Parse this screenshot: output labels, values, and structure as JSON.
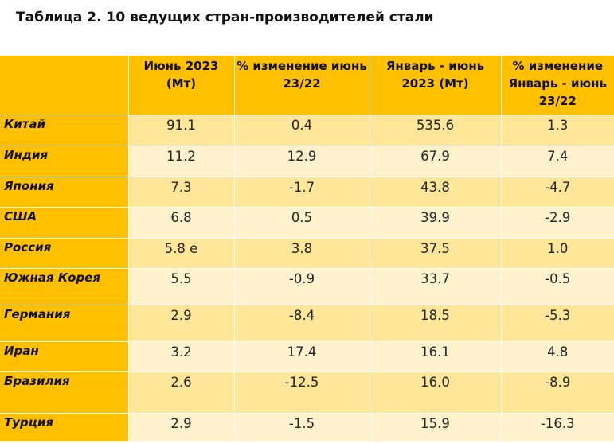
{
  "title": "Таблица 2. 10 ведущих стран-производителей стали",
  "columns": [
    "",
    "Июнь 2023 (Мт)",
    "% изменение июнь 23/22",
    "Январь - июнь 2023 (Мт)",
    "% изменение Январь - июнь 23/22"
  ],
  "rows": [
    {
      "country": "Китай",
      "june": "91.1",
      "june_change": "0.4",
      "jan_jun": "535.6",
      "jan_jun_change": "1.3"
    },
    {
      "country": "Индия",
      "june": "11.2",
      "june_change": "12.9",
      "jan_jun": "67.9",
      "jan_jun_change": "7.4"
    },
    {
      "country": "Япония",
      "june": "7.3",
      "june_change": "-1.7",
      "jan_jun": "43.8",
      "jan_jun_change": "-4.7"
    },
    {
      "country": "США",
      "june": "6.8",
      "june_change": "0.5",
      "jan_jun": "39.9",
      "jan_jun_change": "-2.9"
    },
    {
      "country": "Россия",
      "june": "5.8 е",
      "june_change": "3.8",
      "jan_jun": "37.5",
      "jan_jun_change": "1.0"
    },
    {
      "country": "Южная Корея",
      "june": "5.5",
      "june_change": "-0.9",
      "jan_jun": "33.7",
      "jan_jun_change": "-0.5"
    },
    {
      "country": "Германия",
      "june": "2.9",
      "june_change": "-8.4",
      "jan_jun": "18.5",
      "jan_jun_change": "-5.3"
    },
    {
      "country": "Иран",
      "june": "3.2",
      "june_change": "17.4",
      "jan_jun": "16.1",
      "jan_jun_change": "4.8"
    },
    {
      "country": "Бразилия",
      "june": "2.6",
      "june_change": "-12.5",
      "jan_jun": "16.0",
      "jan_jun_change": "-8.9"
    },
    {
      "country": "Турция",
      "june": "2.9",
      "june_change": "-1.5",
      "jan_jun": "15.9",
      "jan_jun_change": "-16.3"
    }
  ],
  "colors": {
    "header_bg": "#ffc000",
    "row_odd_bg": "#ffe699",
    "row_even_bg": "#fff2cc"
  }
}
